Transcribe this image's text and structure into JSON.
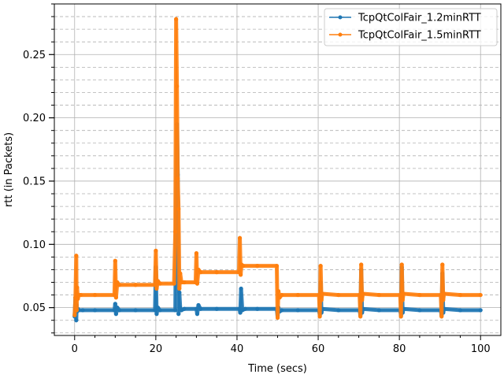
{
  "chart_data": {
    "type": "line",
    "title": "",
    "xlabel": "Time (secs)",
    "ylabel": "rtt (in Packets)",
    "xlim": [
      -5,
      105
    ],
    "ylim": [
      0.028,
      0.29
    ],
    "x_ticks": [
      0,
      20,
      40,
      60,
      80,
      100
    ],
    "x_tick_labels": [
      "0",
      "20",
      "40",
      "60",
      "80",
      "100"
    ],
    "y_ticks": [
      0.05,
      0.1,
      0.15,
      0.2,
      0.25
    ],
    "y_tick_labels": [
      "0.05",
      "0.10",
      "0.15",
      "0.20",
      "0.25"
    ],
    "grid": true,
    "minor_grid_y": true,
    "legend_position": "top-right",
    "series": [
      {
        "name": "TcpQtColFair_1.2minRTT",
        "color": "#1f77b4",
        "x": [
          0,
          0.2,
          0.4,
          0.5,
          0.6,
          0.8,
          1.0,
          2,
          5,
          9.8,
          10.0,
          10.2,
          10.5,
          11,
          15,
          19.8,
          20.0,
          20.2,
          20.5,
          21,
          24.8,
          25.0,
          25.2,
          25.4,
          25.6,
          25.8,
          26.0,
          26.3,
          27,
          30,
          30.2,
          30.5,
          31,
          35,
          40.6,
          40.8,
          41.0,
          41.3,
          42,
          45,
          49.8,
          50.0,
          50.2,
          50.5,
          51,
          55,
          60.2,
          60.4,
          60.6,
          60.8,
          61,
          65,
          70.2,
          70.4,
          70.6,
          70.8,
          71,
          75,
          80.2,
          80.4,
          80.6,
          80.8,
          81,
          85,
          90.2,
          90.4,
          90.6,
          90.8,
          91,
          95,
          100
        ],
        "y": [
          0.043,
          0.058,
          0.04,
          0.052,
          0.047,
          0.049,
          0.048,
          0.048,
          0.048,
          0.048,
          0.053,
          0.045,
          0.05,
          0.048,
          0.048,
          0.048,
          0.082,
          0.045,
          0.05,
          0.048,
          0.048,
          0.13,
          0.195,
          0.155,
          0.045,
          0.062,
          0.05,
          0.048,
          0.049,
          0.049,
          0.045,
          0.052,
          0.049,
          0.049,
          0.049,
          0.046,
          0.065,
          0.048,
          0.049,
          0.049,
          0.049,
          0.043,
          0.05,
          0.047,
          0.048,
          0.048,
          0.048,
          0.044,
          0.07,
          0.046,
          0.049,
          0.048,
          0.048,
          0.044,
          0.08,
          0.046,
          0.049,
          0.048,
          0.048,
          0.044,
          0.082,
          0.046,
          0.049,
          0.048,
          0.048,
          0.044,
          0.077,
          0.046,
          0.049,
          0.048,
          0.048
        ]
      },
      {
        "name": "TcpQtColFair_1.5minRTT",
        "color": "#ff7f0e",
        "x": [
          0,
          0.2,
          0.4,
          0.5,
          0.6,
          0.8,
          1.0,
          1.5,
          5,
          9.8,
          10.0,
          10.2,
          10.5,
          11,
          15,
          19.8,
          20.0,
          20.2,
          20.5,
          21,
          24.5,
          24.8,
          25.0,
          25.2,
          25.4,
          25.6,
          25.8,
          26.0,
          26.3,
          27,
          29.8,
          30.0,
          30.2,
          30.5,
          31,
          35,
          40.5,
          40.7,
          40.9,
          41.1,
          41.5,
          45,
          49.8,
          50.0,
          50.2,
          50.5,
          51,
          55,
          60.2,
          60.4,
          60.6,
          60.8,
          61,
          65,
          70.2,
          70.4,
          70.6,
          70.8,
          71,
          75,
          80.2,
          80.4,
          80.6,
          80.8,
          81,
          85,
          90.2,
          90.4,
          90.6,
          90.8,
          91,
          95,
          100
        ],
        "y": [
          0.044,
          0.058,
          0.091,
          0.048,
          0.066,
          0.057,
          0.06,
          0.06,
          0.06,
          0.06,
          0.087,
          0.058,
          0.07,
          0.068,
          0.068,
          0.068,
          0.095,
          0.065,
          0.071,
          0.069,
          0.069,
          0.11,
          0.278,
          0.225,
          0.152,
          0.128,
          0.065,
          0.077,
          0.07,
          0.07,
          0.07,
          0.093,
          0.069,
          0.08,
          0.078,
          0.078,
          0.078,
          0.105,
          0.076,
          0.084,
          0.083,
          0.083,
          0.083,
          0.042,
          0.063,
          0.058,
          0.06,
          0.06,
          0.06,
          0.043,
          0.083,
          0.056,
          0.061,
          0.06,
          0.06,
          0.043,
          0.084,
          0.056,
          0.061,
          0.06,
          0.06,
          0.043,
          0.084,
          0.056,
          0.061,
          0.06,
          0.06,
          0.043,
          0.084,
          0.056,
          0.061,
          0.06,
          0.06
        ]
      }
    ]
  }
}
